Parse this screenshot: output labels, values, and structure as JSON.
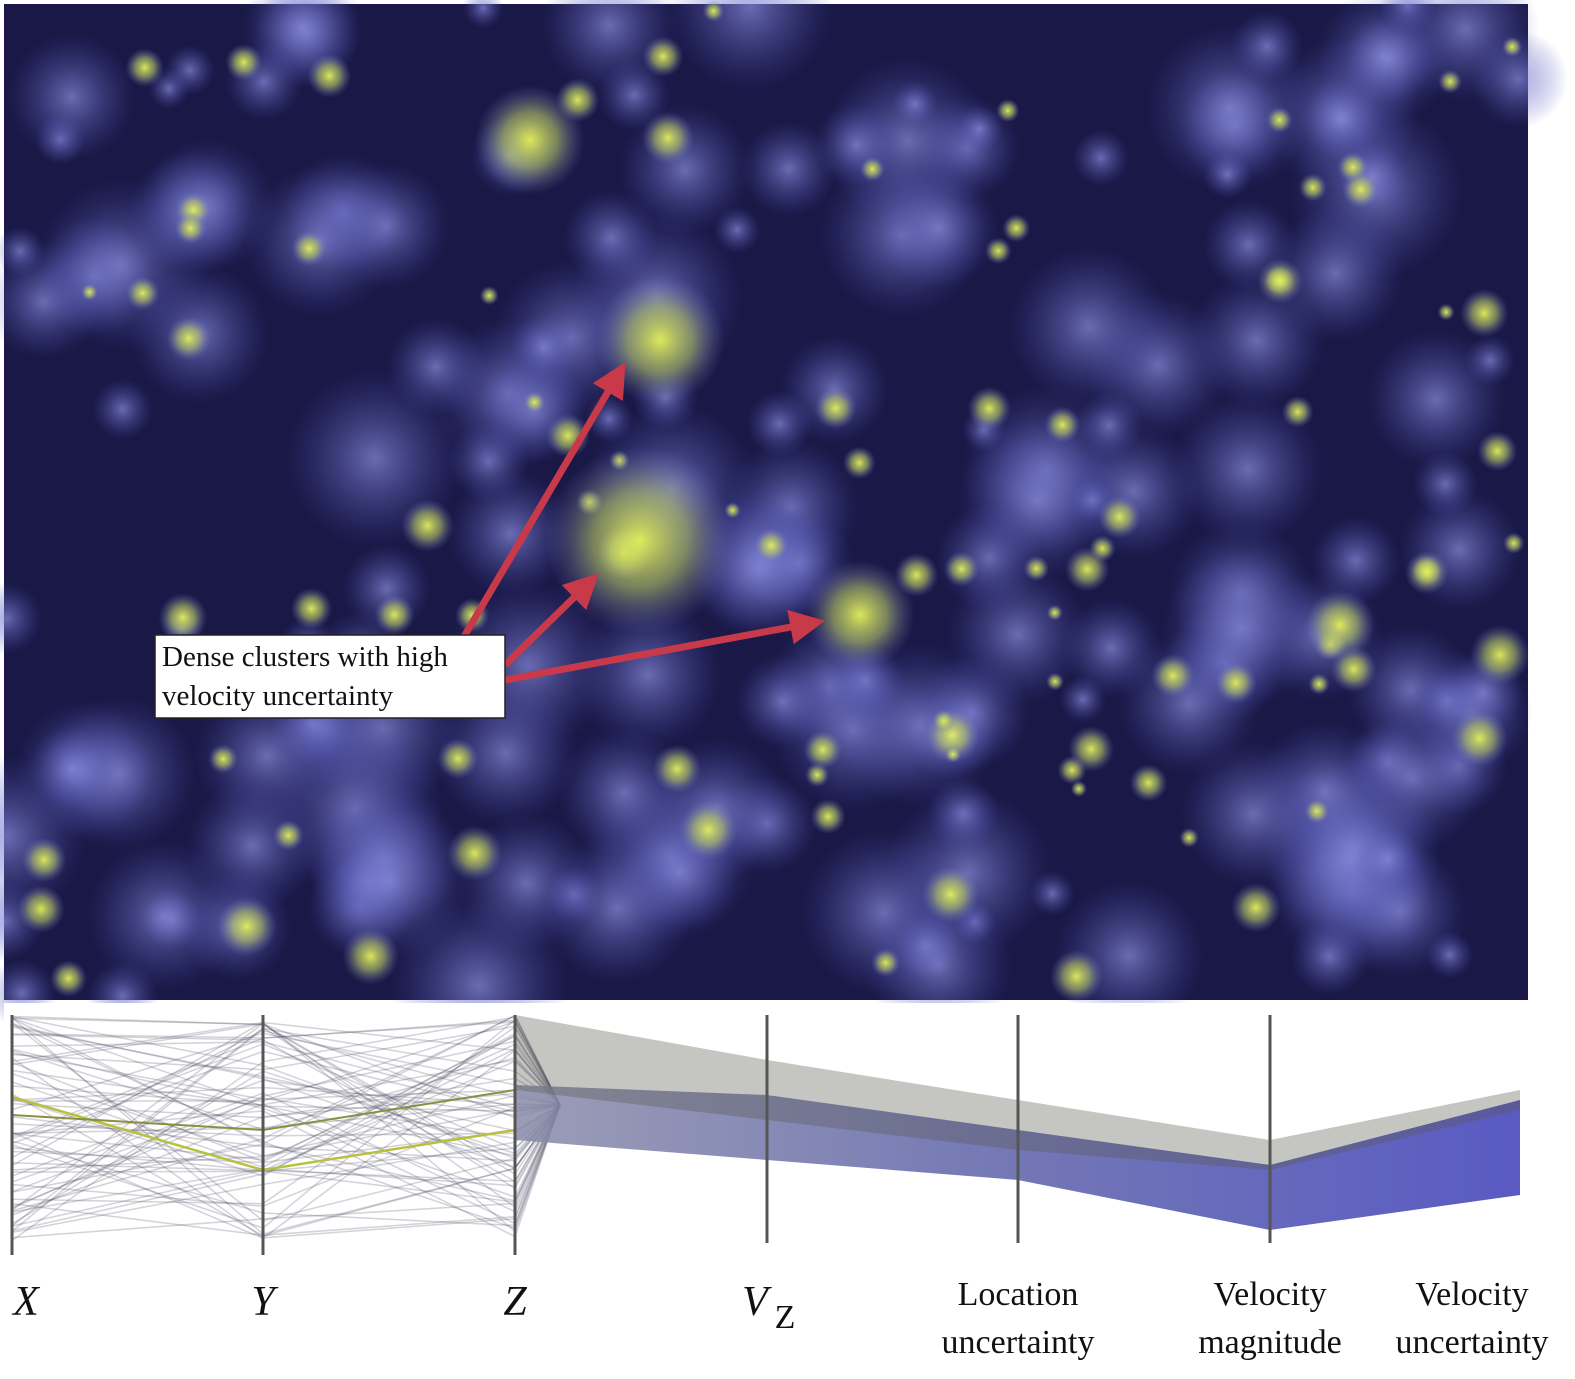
{
  "annotation": {
    "lines": [
      "Dense clusters with high",
      "velocity uncertainty"
    ]
  },
  "axes": [
    {
      "label": "X"
    },
    {
      "label": "Y"
    },
    {
      "label": "Z"
    },
    {
      "label": "V",
      "subscript": "Z"
    },
    {
      "lines": [
        "Location",
        "uncertainty"
      ]
    },
    {
      "lines": [
        "Velocity",
        "magnitude"
      ]
    },
    {
      "lines": [
        "Velocity",
        "uncertainty"
      ]
    }
  ]
}
